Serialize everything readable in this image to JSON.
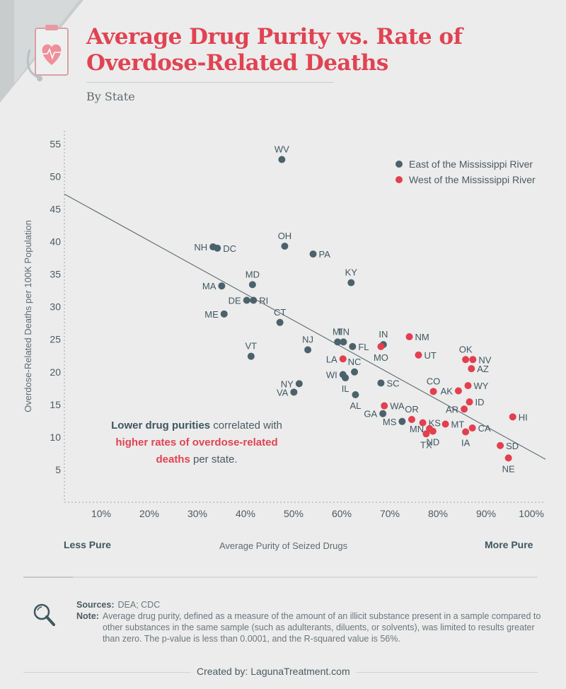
{
  "title_line1": "Average Drug Purity vs. Rate of",
  "title_line2": "Overdose-Related Deaths",
  "subtitle": "By State",
  "colors": {
    "east": "#4b626c",
    "west": "#e23f4f",
    "accent": "#e04352"
  },
  "chart_data": {
    "type": "scatter",
    "title": "Average Drug Purity vs. Rate of Overdose-Related Deaths",
    "xlabel": "Average Purity of Seized Drugs",
    "ylabel": "Overdose-Related Deaths per 100K Population",
    "xlim": [
      0,
      100
    ],
    "ylim": [
      0,
      57
    ],
    "x_ticks": [
      "10%",
      "20%",
      "30%",
      "40%",
      "50%",
      "60%",
      "70%",
      "80%",
      "90%",
      "100%"
    ],
    "y_ticks": [
      "5",
      "10",
      "15",
      "20",
      "25",
      "30",
      "35",
      "40",
      "45",
      "50",
      "55"
    ],
    "x_tick_values": [
      10,
      20,
      30,
      40,
      50,
      60,
      70,
      80,
      90,
      100
    ],
    "y_tick_values": [
      5,
      10,
      15,
      20,
      25,
      30,
      35,
      40,
      45,
      50,
      55
    ],
    "legend": [
      {
        "name": "East of the Mississippi River",
        "color": "#4b626c"
      },
      {
        "name": "West of the Mississippi River",
        "color": "#e23f4f"
      }
    ],
    "trendline": {
      "x": [
        0,
        100
      ],
      "y": [
        47.3,
        6.6
      ]
    },
    "points": [
      {
        "label": "WV",
        "x": 45.2,
        "y": 52.6,
        "group": "east",
        "lp": "t"
      },
      {
        "label": "NH",
        "x": 30.9,
        "y": 39.2,
        "group": "east",
        "lp": "l"
      },
      {
        "label": "DC",
        "x": 31.8,
        "y": 39.0,
        "group": "east",
        "lp": "r"
      },
      {
        "label": "OH",
        "x": 45.8,
        "y": 39.3,
        "group": "east",
        "lp": "t"
      },
      {
        "label": "PA",
        "x": 51.7,
        "y": 38.1,
        "group": "east",
        "lp": "r"
      },
      {
        "label": "MD",
        "x": 39.1,
        "y": 33.4,
        "group": "east",
        "lp": "t"
      },
      {
        "label": "MA",
        "x": 32.7,
        "y": 33.2,
        "group": "east",
        "lp": "l"
      },
      {
        "label": "KY",
        "x": 59.6,
        "y": 33.7,
        "group": "east",
        "lp": "t"
      },
      {
        "label": "DE",
        "x": 37.9,
        "y": 31.0,
        "group": "east",
        "lp": "l"
      },
      {
        "label": "RI",
        "x": 39.3,
        "y": 31.0,
        "group": "east",
        "lp": "r"
      },
      {
        "label": "ME",
        "x": 33.2,
        "y": 28.9,
        "group": "east",
        "lp": "l"
      },
      {
        "label": "CT",
        "x": 44.8,
        "y": 27.6,
        "group": "east",
        "lp": "t"
      },
      {
        "label": "MI",
        "x": 56.8,
        "y": 24.6,
        "group": "east",
        "lp": "t"
      },
      {
        "label": "TN",
        "x": 58.0,
        "y": 24.6,
        "group": "east",
        "lp": "t"
      },
      {
        "label": "IN",
        "x": 66.3,
        "y": 24.2,
        "group": "east",
        "lp": "t"
      },
      {
        "label": "FL",
        "x": 59.9,
        "y": 23.9,
        "group": "east",
        "lp": "r"
      },
      {
        "label": "NJ",
        "x": 50.6,
        "y": 23.4,
        "group": "east",
        "lp": "t"
      },
      {
        "label": "VT",
        "x": 38.8,
        "y": 22.4,
        "group": "east",
        "lp": "t"
      },
      {
        "label": "NC",
        "x": 60.3,
        "y": 20.0,
        "group": "east",
        "lp": "t"
      },
      {
        "label": "WI",
        "x": 57.9,
        "y": 19.6,
        "group": "east",
        "lp": "l"
      },
      {
        "label": "IL",
        "x": 58.4,
        "y": 19.1,
        "group": "east",
        "lp": "b"
      },
      {
        "label": "NY",
        "x": 48.8,
        "y": 18.2,
        "group": "east",
        "lp": "l"
      },
      {
        "label": "SC",
        "x": 65.8,
        "y": 18.3,
        "group": "east",
        "lp": "r"
      },
      {
        "label": "VA",
        "x": 47.7,
        "y": 16.9,
        "group": "east",
        "lp": "l"
      },
      {
        "label": "AL",
        "x": 60.5,
        "y": 16.5,
        "group": "east",
        "lp": "b"
      },
      {
        "label": "GA",
        "x": 66.2,
        "y": 13.6,
        "group": "east",
        "lp": "l"
      },
      {
        "label": "MS",
        "x": 70.2,
        "y": 12.4,
        "group": "east",
        "lp": "l"
      },
      {
        "label": "NM",
        "x": 71.7,
        "y": 25.4,
        "group": "west",
        "lp": "r"
      },
      {
        "label": "MO",
        "x": 65.8,
        "y": 23.9,
        "group": "west",
        "lp": "b"
      },
      {
        "label": "UT",
        "x": 73.6,
        "y": 22.6,
        "group": "west",
        "lp": "r"
      },
      {
        "label": "LA",
        "x": 57.9,
        "y": 22.0,
        "group": "west",
        "lp": "l"
      },
      {
        "label": "OK",
        "x": 83.4,
        "y": 21.9,
        "group": "west",
        "lp": "t"
      },
      {
        "label": "NV",
        "x": 84.9,
        "y": 21.9,
        "group": "west",
        "lp": "r"
      },
      {
        "label": "AZ",
        "x": 84.6,
        "y": 20.5,
        "group": "west",
        "lp": "r"
      },
      {
        "label": "CO",
        "x": 76.7,
        "y": 17.0,
        "group": "west",
        "lp": "t"
      },
      {
        "label": "WY",
        "x": 83.9,
        "y": 17.9,
        "group": "west",
        "lp": "r"
      },
      {
        "label": "AK",
        "x": 81.9,
        "y": 17.1,
        "group": "west",
        "lp": "l"
      },
      {
        "label": "ID",
        "x": 84.2,
        "y": 15.4,
        "group": "west",
        "lp": "r"
      },
      {
        "label": "WA",
        "x": 66.5,
        "y": 14.8,
        "group": "west",
        "lp": "r"
      },
      {
        "label": "AR",
        "x": 83.1,
        "y": 14.3,
        "group": "west",
        "lp": "l"
      },
      {
        "label": "HI",
        "x": 93.2,
        "y": 13.1,
        "group": "west",
        "lp": "r"
      },
      {
        "label": "OR",
        "x": 72.2,
        "y": 12.7,
        "group": "west",
        "lp": "t"
      },
      {
        "label": "KS",
        "x": 74.5,
        "y": 12.2,
        "group": "west",
        "lp": "r"
      },
      {
        "label": "MT",
        "x": 79.2,
        "y": 12.0,
        "group": "west",
        "lp": "r"
      },
      {
        "label": "CA",
        "x": 84.8,
        "y": 11.4,
        "group": "west",
        "lp": "r"
      },
      {
        "label": "MN",
        "x": 75.9,
        "y": 11.3,
        "group": "west",
        "lp": "l"
      },
      {
        "label": "ND",
        "x": 76.6,
        "y": 10.9,
        "group": "west",
        "lp": "b"
      },
      {
        "label": "IA",
        "x": 83.4,
        "y": 10.8,
        "group": "west",
        "lp": "b"
      },
      {
        "label": "TX",
        "x": 75.2,
        "y": 10.5,
        "group": "west",
        "lp": "b"
      },
      {
        "label": "SD",
        "x": 90.6,
        "y": 8.7,
        "group": "west",
        "lp": "r"
      },
      {
        "label": "NE",
        "x": 92.3,
        "y": 6.8,
        "group": "west",
        "lp": "b"
      }
    ]
  },
  "axis_ends": {
    "less": "Less Pure",
    "more": "More Pure"
  },
  "annotation": {
    "part1": "Lower drug purities",
    "part2": " correlated with",
    "part3": "higher rates of overdose-related",
    "part4": "deaths",
    "part5": " per state."
  },
  "sources": {
    "label": "Sources:",
    "text": "DEA; CDC"
  },
  "note": {
    "label": "Note:",
    "text": "Average drug purity, defined as a measure of the amount of an illicit substance present in a sample compared to other substances in the same sample (such as adulterants, diluents, or solvents), was limited to results greater than zero. The p-value is less than 0.0001, and the R-squared value is 56%."
  },
  "credit": {
    "label": "Created by: ",
    "site": "LagunaTreatment.com"
  }
}
